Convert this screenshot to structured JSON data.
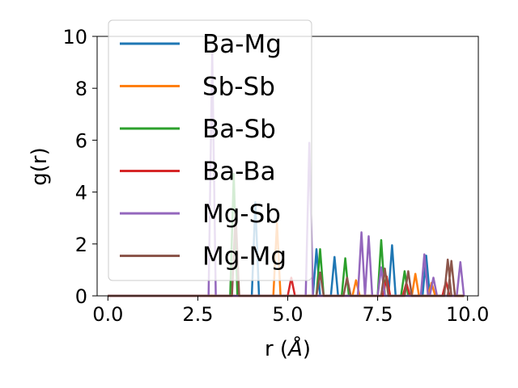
{
  "chart_data": {
    "type": "line",
    "title": "",
    "xlabel_prefix": "r (",
    "xlabel_unit": "Å",
    "xlabel_suffix": ")",
    "ylabel": "g(r)",
    "xlim": [
      -0.3,
      10.3
    ],
    "ylim": [
      0,
      10
    ],
    "xticks": [
      0.0,
      2.5,
      5.0,
      7.5,
      10.0
    ],
    "xtick_labels": [
      "0.0",
      "2.5",
      "5.0",
      "7.5",
      "10.0"
    ],
    "yticks": [
      0,
      2,
      4,
      6,
      8,
      10
    ],
    "ytick_labels": [
      "0",
      "2",
      "4",
      "6",
      "8",
      "10"
    ],
    "grid": false,
    "legend_position": "upper-left",
    "x_range": [
      0.0,
      9.9
    ],
    "peak_half_width": 0.1,
    "series": [
      {
        "name": "Ba-Mg",
        "color": "#1f77b4",
        "peaks": [
          [
            4.1,
            3.6
          ],
          [
            5.8,
            1.8
          ],
          [
            6.3,
            1.5
          ],
          [
            7.9,
            1.95
          ],
          [
            8.85,
            1.55
          ]
        ]
      },
      {
        "name": "Sb-Sb",
        "color": "#ff7f0e",
        "peaks": [
          [
            4.7,
            2.8
          ],
          [
            6.9,
            0.6
          ],
          [
            8.55,
            0.85
          ],
          [
            9.0,
            0.5
          ]
        ]
      },
      {
        "name": "Ba-Sb",
        "color": "#2ca02c",
        "peaks": [
          [
            3.5,
            4.7
          ],
          [
            5.9,
            1.8
          ],
          [
            6.6,
            1.45
          ],
          [
            7.6,
            2.15
          ],
          [
            8.25,
            0.95
          ]
        ]
      },
      {
        "name": "Ba-Ba",
        "color": "#d62728",
        "peaks": [
          [
            5.1,
            0.7
          ],
          [
            7.75,
            0.75
          ],
          [
            8.3,
            0.5
          ],
          [
            9.4,
            0.55
          ]
        ]
      },
      {
        "name": "Mg-Sb",
        "color": "#9467bd",
        "peaks": [
          [
            2.9,
            9.4
          ],
          [
            5.6,
            5.9
          ],
          [
            7.05,
            2.45
          ],
          [
            7.25,
            2.3
          ],
          [
            7.6,
            1.1
          ],
          [
            8.8,
            1.6
          ],
          [
            9.05,
            0.7
          ],
          [
            9.8,
            1.3
          ]
        ]
      },
      {
        "name": "Mg-Mg",
        "color": "#8c564b",
        "peaks": [
          [
            3.55,
            3.2
          ],
          [
            5.9,
            0.9
          ],
          [
            6.65,
            0.7
          ],
          [
            7.7,
            1.05
          ],
          [
            8.35,
            0.95
          ],
          [
            9.45,
            1.4
          ],
          [
            9.55,
            1.35
          ]
        ]
      }
    ]
  }
}
